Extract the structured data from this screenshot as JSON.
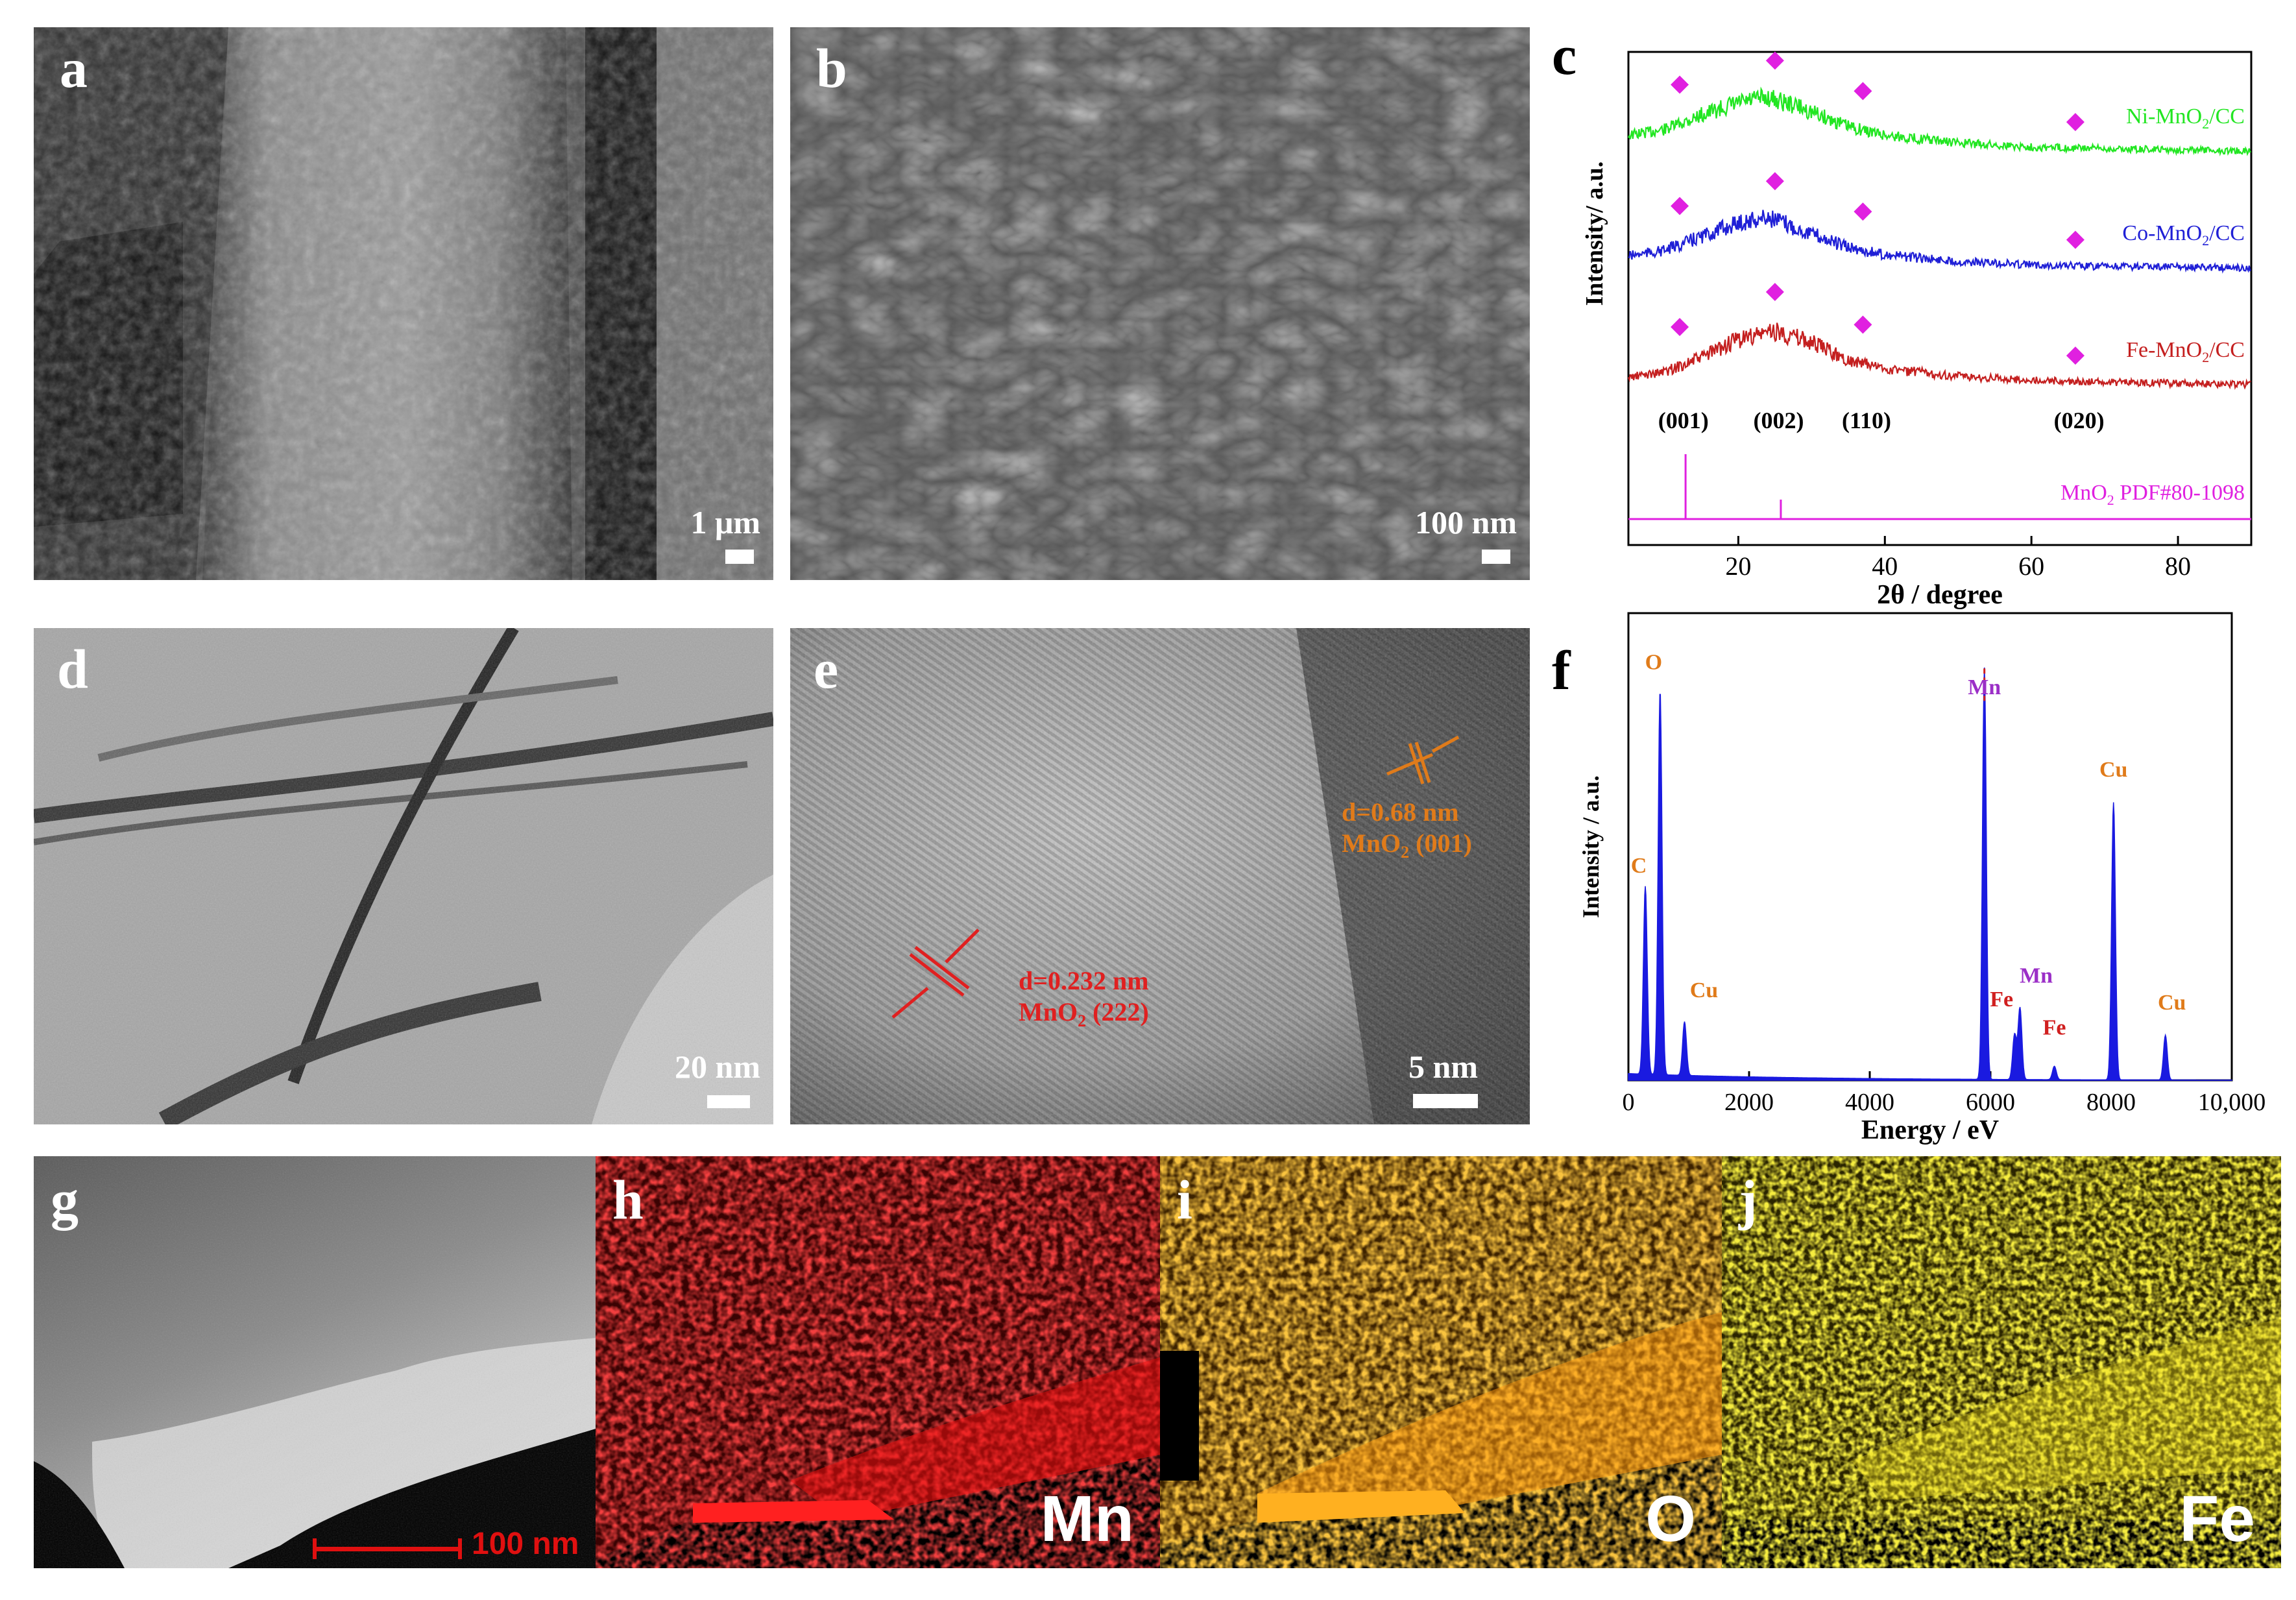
{
  "panels": {
    "a": {
      "label": "a",
      "scale": "1 μm"
    },
    "b": {
      "label": "b",
      "scale": "100 nm"
    },
    "c": {
      "label": "c"
    },
    "d": {
      "label": "d",
      "scale": "20 nm"
    },
    "e": {
      "label": "e",
      "scale": "5 nm",
      "ann1": {
        "line1": "d=0.68 nm",
        "line2": "MnO",
        "sub": "2",
        "line2b": " (001)"
      },
      "ann2": {
        "line1": "d=0.232 nm",
        "line2": "MnO",
        "sub": "2",
        "line2b": " (222)"
      }
    },
    "f": {
      "label": "f"
    },
    "g": {
      "label": "g",
      "scale": "100 nm"
    },
    "h": {
      "label": "h",
      "element": "Mn"
    },
    "i": {
      "label": "i",
      "element": "O"
    },
    "j": {
      "label": "j",
      "element": "Fe"
    }
  },
  "chart_data": [
    {
      "type": "line",
      "panel": "c",
      "xlabel": "2θ / degree",
      "ylabel": "Intensity/ a.u.",
      "xlim": [
        5,
        90
      ],
      "xticks": [
        "20",
        "40",
        "60",
        "80"
      ],
      "series": [
        {
          "name": "Ni-MnO2/CC",
          "name_main": "Ni-MnO",
          "name_sub": "2",
          "name_end": "/CC",
          "color": "#22e622",
          "peak_center": 24,
          "x": [
            5,
            10,
            15,
            20,
            24,
            28,
            35,
            40,
            50,
            60,
            70,
            80,
            90
          ],
          "y": [
            0.35,
            0.45,
            0.7,
            0.9,
            1.0,
            0.85,
            0.5,
            0.35,
            0.22,
            0.15,
            0.12,
            0.1,
            0.08
          ]
        },
        {
          "name": "Co-MnO2/CC",
          "name_main": "Co-MnO",
          "name_sub": "2",
          "name_end": "/CC",
          "color": "#1f1fd6",
          "peak_center": 24,
          "x": [
            5,
            10,
            15,
            20,
            24,
            28,
            35,
            40,
            50,
            60,
            70,
            80,
            90
          ],
          "y": [
            0.3,
            0.4,
            0.65,
            0.9,
            1.0,
            0.8,
            0.45,
            0.32,
            0.2,
            0.14,
            0.11,
            0.1,
            0.08
          ]
        },
        {
          "name": "Fe-MnO2/CC",
          "name_main": "Fe-MnO",
          "name_sub": "2",
          "name_end": "/CC",
          "color": "#c41f1f",
          "peak_center": 25,
          "x": [
            5,
            10,
            15,
            20,
            25,
            30,
            35,
            40,
            50,
            60,
            70,
            80,
            90
          ],
          "y": [
            0.2,
            0.3,
            0.55,
            0.85,
            1.0,
            0.8,
            0.5,
            0.35,
            0.22,
            0.15,
            0.12,
            0.1,
            0.08
          ]
        }
      ],
      "marker_positions": [
        12,
        25,
        37,
        66
      ],
      "hkl_labels": [
        {
          "text": "(001)",
          "x": 12.5
        },
        {
          "text": "(002)",
          "x": 25.5
        },
        {
          "text": "(110)",
          "x": 37.5
        },
        {
          "text": "(020)",
          "x": 66.5
        }
      ],
      "reference": {
        "label_main": "MnO",
        "label_sub": "2",
        "label_end": " PDF#80-1098",
        "color": "#e020e0",
        "sticks": [
          {
            "x": 12.8,
            "h": 1.0
          },
          {
            "x": 25.8,
            "h": 0.3
          }
        ]
      },
      "marker_color": "#e020e0"
    },
    {
      "type": "bar",
      "panel": "f",
      "xlabel": "Energy / eV",
      "ylabel": "Intensity / a.u.",
      "xlim": [
        0,
        10000
      ],
      "xticks": [
        "0",
        "2000",
        "4000",
        "6000",
        "8000",
        "10,000"
      ],
      "peaks": [
        {
          "label": "C",
          "x": 280,
          "h": 0.42,
          "color": "#e07b1a"
        },
        {
          "label": "O",
          "x": 525,
          "h": 0.86,
          "color": "#e07b1a"
        },
        {
          "label": "Cu",
          "x": 930,
          "h": 0.12,
          "color": "#e07b1a"
        },
        {
          "label": "Mn",
          "x": 5900,
          "h": 0.92,
          "color": "#9b2fc7"
        },
        {
          "label": "Fe",
          "x": 6400,
          "h": 0.1,
          "color": "#d01f1f"
        },
        {
          "label": "Mn",
          "x": 6490,
          "h": 0.16,
          "color": "#9b2fc7"
        },
        {
          "label": "Fe",
          "x": 7060,
          "h": 0.03,
          "color": "#d01f1f"
        },
        {
          "label": "Cu",
          "x": 8040,
          "h": 0.62,
          "color": "#e07b1a"
        },
        {
          "label": "Cu",
          "x": 8900,
          "h": 0.1,
          "color": "#e07b1a"
        }
      ],
      "bar_color": "#1a1ae0"
    }
  ]
}
